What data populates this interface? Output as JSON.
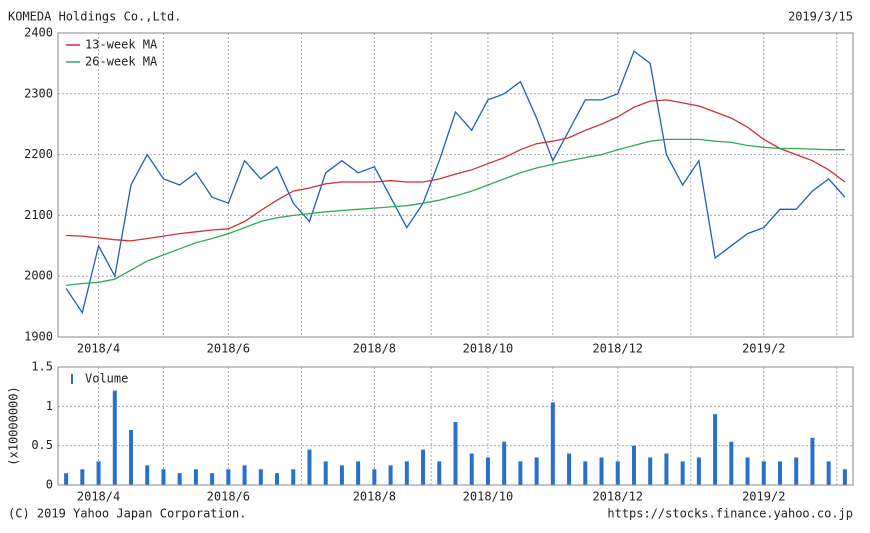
{
  "header": {
    "title": "KOMEDA Holdings Co.,Ltd.",
    "date": "2019/3/15"
  },
  "footer": {
    "copyright": "(C) 2019 Yahoo Japan Corporation.",
    "url": "https://stocks.finance.yahoo.co.jp"
  },
  "chart_data": [
    {
      "type": "line",
      "categories": [
        null,
        null,
        "2018/4",
        null,
        null,
        null,
        null,
        null,
        null,
        null,
        "2018/6",
        null,
        null,
        null,
        null,
        null,
        null,
        null,
        null,
        "2018/8",
        null,
        null,
        null,
        null,
        null,
        null,
        "2018/10",
        null,
        null,
        null,
        null,
        null,
        null,
        null,
        "2018/12",
        null,
        null,
        null,
        null,
        null,
        null,
        null,
        null,
        "2019/2",
        null,
        null,
        null,
        null,
        null
      ],
      "series": [
        {
          "color": "#1f5fbf",
          "values": [
            1980,
            1940,
            2050,
            2000,
            2150,
            2200,
            2160,
            2150,
            2170,
            2130,
            2120,
            2190,
            2160,
            2180,
            2120,
            2090,
            2170,
            2190,
            2170,
            2180,
            2130,
            2080,
            2120,
            2190,
            2270,
            2240,
            2290,
            2300,
            2320,
            2260,
            2190,
            2240,
            2290,
            2290,
            2300,
            2370,
            2350,
            2200,
            2150,
            2190,
            2030,
            2050,
            2070,
            2080,
            2110,
            2110,
            2140,
            2160,
            2130
          ]
        },
        {
          "name": "13-week MA",
          "color": "#cc3333",
          "values": [
            2067,
            2066,
            2063,
            2060,
            2058,
            2062,
            2066,
            2070,
            2073,
            2076,
            2078,
            2090,
            2108,
            2125,
            2140,
            2145,
            2152,
            2155,
            2155,
            2155,
            2157,
            2155,
            2155,
            2160,
            2168,
            2175,
            2185,
            2195,
            2208,
            2218,
            2222,
            2228,
            2240,
            2250,
            2262,
            2278,
            2288,
            2290,
            2285,
            2280,
            2270,
            2260,
            2245,
            2225,
            2210,
            2200,
            2190,
            2175,
            2155
          ]
        },
        {
          "name": "26-week MA",
          "color": "#33aa55",
          "values": [
            1985,
            1988,
            1990,
            1995,
            2010,
            2025,
            2035,
            2045,
            2055,
            2062,
            2070,
            2080,
            2090,
            2096,
            2100,
            2103,
            2106,
            2108,
            2110,
            2112,
            2114,
            2116,
            2120,
            2125,
            2132,
            2140,
            2150,
            2160,
            2170,
            2178,
            2184,
            2190,
            2195,
            2200,
            2208,
            2215,
            2222,
            2225,
            2225,
            2225,
            2222,
            2220,
            2215,
            2212,
            2210,
            2210,
            2209,
            2208,
            2208
          ]
        }
      ],
      "ylim": [
        1900,
        2400
      ],
      "yticks": [
        1900,
        2000,
        2100,
        2200,
        2300,
        2400
      ],
      "grid": true,
      "legend": "upper left"
    },
    {
      "type": "bar",
      "y_label": "(x10000000)",
      "categories": [
        null,
        null,
        "2018/4",
        null,
        null,
        null,
        null,
        null,
        null,
        null,
        "2018/6",
        null,
        null,
        null,
        null,
        null,
        null,
        null,
        null,
        "2018/8",
        null,
        null,
        null,
        null,
        null,
        null,
        "2018/10",
        null,
        null,
        null,
        null,
        null,
        null,
        null,
        "2018/12",
        null,
        null,
        null,
        null,
        null,
        null,
        null,
        null,
        "2019/2",
        null,
        null,
        null,
        null,
        null
      ],
      "series": [
        {
          "name": "Volume",
          "color": "#2a6fc9",
          "values": [
            0.15,
            0.2,
            0.3,
            1.2,
            0.7,
            0.25,
            0.2,
            0.15,
            0.2,
            0.15,
            0.2,
            0.25,
            0.2,
            0.15,
            0.2,
            0.45,
            0.3,
            0.25,
            0.3,
            0.2,
            0.25,
            0.3,
            0.45,
            0.3,
            0.8,
            0.4,
            0.35,
            0.55,
            0.3,
            0.35,
            1.05,
            0.4,
            0.3,
            0.35,
            0.3,
            0.5,
            0.35,
            0.4,
            0.3,
            0.35,
            0.9,
            0.55,
            0.35,
            0.3,
            0.3,
            0.35,
            0.6,
            0.3,
            0.2
          ]
        }
      ],
      "ylim": [
        0,
        1.5
      ],
      "yticks": [
        0,
        0.5,
        1,
        1.5
      ],
      "grid": true,
      "legend": "upper left"
    }
  ]
}
